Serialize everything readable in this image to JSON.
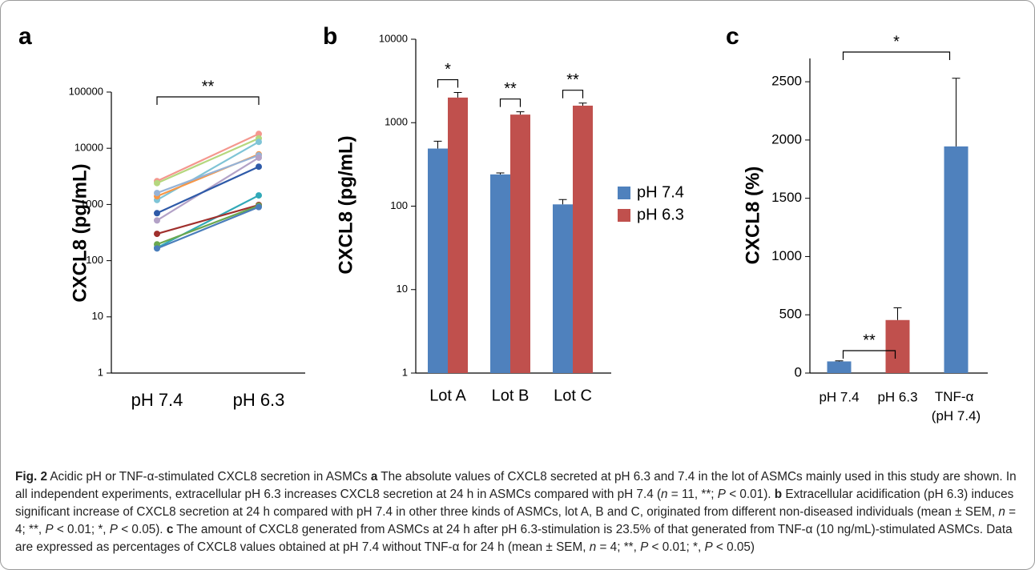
{
  "chart_data": [
    {
      "type": "line",
      "panel": "a",
      "ylabel": "CXCL8 (pg/mL)",
      "log": true,
      "ylim": [
        1,
        100000
      ],
      "yticks": [
        1,
        10,
        100,
        1000,
        10000,
        100000
      ],
      "categories": [
        "pH 7.4",
        "pH 6.3"
      ],
      "series": [
        {
          "color": "#f4978e",
          "values": [
            2600,
            18000
          ]
        },
        {
          "color": "#b5d77e",
          "values": [
            2400,
            15000
          ]
        },
        {
          "color": "#7fc4d6",
          "values": [
            1200,
            13000
          ]
        },
        {
          "color": "#f79646",
          "values": [
            1400,
            7800
          ]
        },
        {
          "color": "#95b3d7",
          "values": [
            1600,
            7500
          ]
        },
        {
          "color": "#b3a2c7",
          "values": [
            520,
            6800
          ]
        },
        {
          "color": "#2e5aa8",
          "values": [
            700,
            4700
          ]
        },
        {
          "color": "#31a9b8",
          "values": [
            170,
            1450
          ]
        },
        {
          "color": "#a0302d",
          "values": [
            300,
            980
          ]
        },
        {
          "color": "#6aa84f",
          "values": [
            195,
            950
          ]
        },
        {
          "color": "#4a7ebb",
          "values": [
            165,
            900
          ]
        }
      ],
      "annotations": [
        "**"
      ]
    },
    {
      "type": "bar",
      "panel": "b",
      "ylabel": "CXCL8 (pg/mL)",
      "log": true,
      "ylim": [
        1,
        10000
      ],
      "yticks": [
        1,
        10,
        100,
        1000,
        10000
      ],
      "categories": [
        "Lot A",
        "Lot B",
        "Lot C"
      ],
      "series": [
        {
          "name": "pH 7.4",
          "color": "#4f81bd",
          "values": [
            490,
            240,
            105
          ],
          "errors": [
            110,
            10,
            15
          ]
        },
        {
          "name": "pH 6.3",
          "color": "#c0504d",
          "values": [
            2000,
            1250,
            1600
          ],
          "errors": [
            300,
            100,
            120
          ]
        }
      ],
      "legend": "right",
      "annotations": [
        "*",
        "**",
        "**"
      ]
    },
    {
      "type": "bar",
      "panel": "c",
      "ylabel": "CXCL8 (%)",
      "log": false,
      "ylim": [
        0,
        2700
      ],
      "yticks": [
        0,
        500,
        1000,
        1500,
        2000,
        2500
      ],
      "categories": [
        "pH 7.4",
        "pH 6.3",
        "TNF-α (pH 7.4)"
      ],
      "values": [
        100,
        455,
        1945
      ],
      "errors": [
        5,
        105,
        585
      ],
      "colors": [
        "#4f81bd",
        "#c0504d",
        "#4f81bd"
      ],
      "annotations": [
        "**",
        "*"
      ]
    }
  ],
  "caption": [
    {
      "text": "Fig. 2",
      "style": "bold"
    },
    " Acidic pH or TNF-α-stimulated CXCL8 secretion in ASMCs ",
    {
      "text": "a",
      "style": "bold"
    },
    " The absolute values of CXCL8 secreted at pH 6.3 and 7.4 in the lot of ASMCs mainly used in this study are shown. In all independent experiments, extracellular pH 6.3 increases CXCL8 secretion at 24 h in ASMCs compared with pH 7.4 (",
    {
      "text": "n",
      "style": "italic"
    },
    " = 11, **; ",
    {
      "text": "P",
      "style": "italic"
    },
    " < 0.01). ",
    {
      "text": "b",
      "style": "bold"
    },
    " Extracellular acidification (pH 6.3) induces significant increase of CXCL8 secretion at 24 h compared with pH 7.4 in other three kinds of ASMCs, lot A, B and C, originated from different non-diseased individuals (mean ± SEM, ",
    {
      "text": "n",
      "style": "italic"
    },
    " = 4; **, ",
    {
      "text": "P",
      "style": "italic"
    },
    " < 0.01; *, ",
    {
      "text": "P",
      "style": "italic"
    },
    " < 0.05). ",
    {
      "text": "c",
      "style": "bold"
    },
    " The amount of CXCL8 generated from ASMCs at 24 h after pH 6.3-stimulation is 23.5% of that generated from TNF-α (10 ng/mL)-stimulated ASMCs. Data are expressed as percentages of CXCL8 values obtained at pH 7.4 without TNF-α for 24 h (mean ± SEM, ",
    {
      "text": "n",
      "style": "italic"
    },
    " = 4; **, ",
    {
      "text": "P",
      "style": "italic"
    },
    " < 0.01; *, ",
    {
      "text": "P",
      "style": "italic"
    },
    " < 0.05)"
  ]
}
